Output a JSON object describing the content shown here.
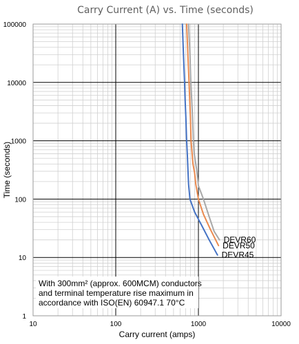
{
  "chart_data": {
    "type": "line",
    "title": "Carry Current (A) vs. Time (seconds)",
    "xlabel": "Carry current (amps)",
    "ylabel": "Time (seconds)",
    "x_scale": "log",
    "y_scale": "log",
    "xlim": [
      10,
      10000
    ],
    "ylim": [
      1,
      100000
    ],
    "x_ticks": [
      "10",
      "100",
      "1000",
      "10000"
    ],
    "y_ticks": [
      "1",
      "10",
      "100",
      "1000",
      "10000",
      "100000"
    ],
    "grid": true,
    "note_lines": [
      "With 300mm² (approx. 600MCM) conductors",
      "and terminal temperature rise maximum in",
      "accordance with ISO(EN) 60947.1 70°C"
    ],
    "series": [
      {
        "name": "DEVR60",
        "color": "#a8a8a8",
        "points": [
          [
            760,
            100000
          ],
          [
            790,
            30000
          ],
          [
            810,
            10000
          ],
          [
            830,
            5000
          ],
          [
            850,
            2500
          ],
          [
            870,
            1000
          ],
          [
            890,
            600
          ],
          [
            950,
            330
          ],
          [
            1000,
            170
          ],
          [
            1150,
            100
          ],
          [
            1350,
            50
          ],
          [
            1550,
            28
          ],
          [
            1800,
            20
          ]
        ]
      },
      {
        "name": "DEVR50",
        "color": "#ea8a4f",
        "points": [
          [
            720,
            100000
          ],
          [
            745,
            30000
          ],
          [
            770,
            10000
          ],
          [
            785,
            5000
          ],
          [
            800,
            2500
          ],
          [
            815,
            1000
          ],
          [
            840,
            600
          ],
          [
            860,
            400
          ],
          [
            900,
            280
          ],
          [
            930,
            180
          ],
          [
            1000,
            100
          ],
          [
            1150,
            55
          ],
          [
            1400,
            30
          ],
          [
            1750,
            16
          ]
        ]
      },
      {
        "name": "DEVR45",
        "color": "#4472c4",
        "points": [
          [
            640,
            100000
          ],
          [
            660,
            30000
          ],
          [
            680,
            10000
          ],
          [
            690,
            5000
          ],
          [
            705,
            2500
          ],
          [
            720,
            1000
          ],
          [
            735,
            550
          ],
          [
            750,
            280
          ],
          [
            760,
            180
          ],
          [
            790,
            100
          ],
          [
            900,
            60
          ],
          [
            1100,
            35
          ],
          [
            1350,
            20
          ],
          [
            1700,
            11
          ]
        ]
      }
    ]
  }
}
